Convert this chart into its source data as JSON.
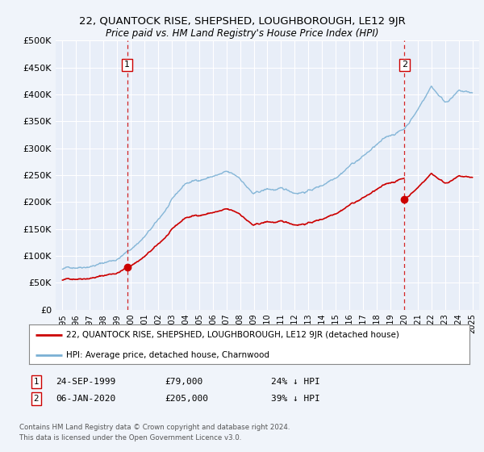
{
  "title": "22, QUANTOCK RISE, SHEPSHED, LOUGHBOROUGH, LE12 9JR",
  "subtitle": "Price paid vs. HM Land Registry's House Price Index (HPI)",
  "legend_label_red": "22, QUANTOCK RISE, SHEPSHED, LOUGHBOROUGH, LE12 9JR (detached house)",
  "legend_label_blue": "HPI: Average price, detached house, Charnwood",
  "footnote1": "Contains HM Land Registry data © Crown copyright and database right 2024.",
  "footnote2": "This data is licensed under the Open Government Licence v3.0.",
  "marker1_date": "24-SEP-1999",
  "marker1_price": 79000,
  "marker1_hpi": "24% ↓ HPI",
  "marker2_date": "06-JAN-2020",
  "marker2_price": 205000,
  "marker2_hpi": "39% ↓ HPI",
  "marker1_x": 1999.73,
  "marker2_x": 2020.02,
  "ylim": [
    0,
    500000
  ],
  "xlim_left": 1994.5,
  "xlim_right": 2025.5,
  "background_color": "#f0f4fa",
  "plot_bg_color": "#e8eef8",
  "red_color": "#cc0000",
  "blue_color": "#7ab0d4",
  "grid_color": "#ffffff",
  "vline_color": "#cc0000",
  "marker_dot_color": "#cc0000",
  "hpi_anchors_x": [
    1995,
    1996,
    1997,
    1998,
    1999,
    2000,
    2001,
    2002,
    2003,
    2004,
    2005,
    2006,
    2007,
    2008,
    2009,
    2010,
    2011,
    2012,
    2013,
    2014,
    2015,
    2016,
    2017,
    2018,
    2019,
    2020,
    2021,
    2022,
    2023,
    2024,
    2025
  ],
  "hpi_anchors_y": [
    75000,
    80000,
    86000,
    92000,
    100000,
    118000,
    142000,
    170000,
    205000,
    235000,
    242000,
    250000,
    255000,
    242000,
    212000,
    220000,
    218000,
    212000,
    218000,
    228000,
    248000,
    272000,
    290000,
    310000,
    325000,
    338000,
    375000,
    420000,
    392000,
    412000,
    407000
  ]
}
